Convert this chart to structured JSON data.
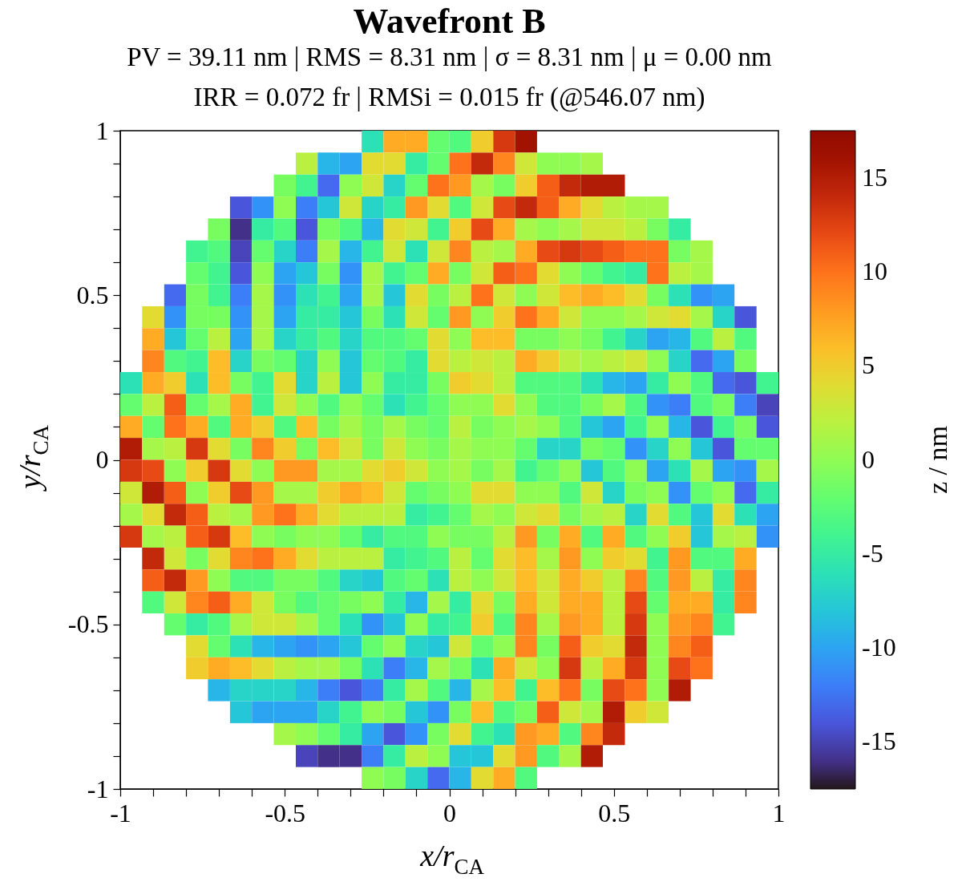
{
  "chart_data": {
    "type": "heatmap",
    "title": "Wavefront B",
    "subtitle": "PV = 39.11 nm | RMS = 8.31 nm | σ = 8.31 nm | μ = 0.00 nm\nIRR = 0.072 fr | RMSi = 0.015 fr (@546.07 nm)",
    "xlabel": "x/r$_{CA}$",
    "ylabel": "y/r$_{CA}$",
    "clabel": "z / nm",
    "x": [
      -0.967,
      -0.9,
      -0.833,
      -0.767,
      -0.7,
      -0.633,
      -0.567,
      -0.5,
      -0.433,
      -0.367,
      -0.3,
      -0.233,
      -0.167,
      -0.1,
      -0.033,
      0.033,
      0.1,
      0.167,
      0.233,
      0.3,
      0.367,
      0.433,
      0.5,
      0.567,
      0.633,
      0.7,
      0.767,
      0.833,
      0.9,
      0.967
    ],
    "cells": [
      [
        null,
        null,
        null,
        null,
        null,
        null,
        null,
        null,
        null,
        null,
        null,
        -6,
        7,
        7,
        -2,
        -3,
        5,
        13,
        16,
        null,
        null,
        null,
        null,
        null,
        null,
        null,
        null,
        null,
        null,
        null
      ],
      [
        null,
        null,
        null,
        null,
        null,
        null,
        null,
        null,
        2,
        -9,
        -10,
        4,
        4,
        -5,
        -2,
        10,
        14,
        9,
        3,
        0,
        0,
        1,
        null,
        null,
        null,
        null,
        null,
        null,
        null,
        null
      ],
      [
        null,
        null,
        null,
        null,
        null,
        null,
        null,
        -1,
        -4,
        -13,
        0,
        3,
        -7,
        -2,
        10,
        8,
        1,
        -1,
        5,
        11,
        14,
        15,
        15,
        null,
        null,
        null,
        null,
        null,
        null,
        null
      ],
      [
        null,
        null,
        null,
        null,
        null,
        -14,
        -11,
        0,
        -12,
        -8,
        3,
        -7,
        -5,
        8,
        4,
        -3,
        3,
        12,
        14,
        11,
        7,
        4,
        2,
        1,
        1,
        null,
        null,
        null,
        null,
        null
      ],
      [
        null,
        null,
        null,
        null,
        -1,
        -16,
        -5,
        -3,
        -14,
        -1,
        -3,
        -9,
        4,
        3,
        -4,
        5,
        12,
        7,
        1,
        0,
        1,
        3,
        3,
        2,
        -1,
        -5,
        null,
        null,
        null,
        null
      ],
      [
        null,
        null,
        null,
        -4,
        -3,
        -15,
        -2,
        -7,
        -12,
        1,
        -9,
        -4,
        3,
        -6,
        3,
        9,
        2,
        1,
        7,
        12,
        13,
        12,
        11,
        10,
        10,
        -1,
        1,
        null,
        null,
        null
      ],
      [
        null,
        null,
        null,
        -2,
        -4,
        -14,
        0,
        -10,
        -8,
        -1,
        -11,
        1,
        -4,
        -2,
        7,
        -1,
        3,
        11,
        10,
        4,
        0,
        -2,
        -4,
        -5,
        10,
        2,
        1,
        null,
        null,
        null
      ],
      [
        null,
        null,
        -13,
        -1,
        -4,
        -12,
        1,
        -11,
        -6,
        -4,
        -10,
        1,
        -8,
        4,
        -1,
        2,
        10,
        3,
        0,
        3,
        6,
        7,
        6,
        4,
        -1,
        -6,
        -11,
        -10,
        null,
        null
      ],
      [
        null,
        4,
        -11,
        -1,
        -1,
        -11,
        1,
        -10,
        -5,
        -5,
        -8,
        -1,
        -6,
        3,
        -2,
        8,
        0,
        5,
        10,
        7,
        3,
        0,
        0,
        1,
        3,
        4,
        1,
        -7,
        -14,
        null
      ],
      [
        null,
        7,
        -8,
        -2,
        2,
        -10,
        1,
        -7,
        -5,
        -3,
        -7,
        -3,
        -3,
        -2,
        4,
        0,
        6,
        6,
        -1,
        -1,
        0,
        -1,
        -4,
        -7,
        -10,
        -9,
        -3,
        2,
        -3,
        null
      ],
      [
        null,
        9,
        -3,
        -4,
        6,
        -7,
        -1,
        -2,
        -7,
        0,
        -8,
        -2,
        -3,
        -5,
        4,
        2,
        3,
        2,
        7,
        5,
        2,
        1,
        2,
        3,
        0,
        -7,
        -13,
        -10,
        -1,
        null
      ],
      [
        -6,
        7,
        5,
        -6,
        6,
        -1,
        -4,
        4,
        -7,
        2,
        -8,
        0,
        -5,
        -5,
        -1,
        5,
        4,
        2,
        -3,
        -3,
        -3,
        -6,
        -9,
        -10,
        -5,
        0,
        -3,
        -13,
        -14,
        -4
      ],
      [
        -2,
        2,
        11,
        -2,
        1,
        7,
        -4,
        3,
        0,
        -3,
        0,
        -2,
        -6,
        -4,
        -2,
        0,
        0,
        4,
        0,
        -3,
        -3,
        -1,
        1,
        -3,
        -11,
        -12,
        -3,
        -1,
        -12,
        -15
      ],
      [
        7,
        -2,
        10,
        7,
        -3,
        7,
        5,
        -3,
        6,
        -1,
        1,
        -1,
        1,
        -1,
        -2,
        2,
        -1,
        0,
        1,
        0,
        -3,
        -8,
        -10,
        -4,
        0,
        -9,
        -14,
        -4,
        -1,
        -14
      ],
      [
        15,
        1,
        2,
        13,
        4,
        -1,
        9,
        5,
        -1,
        6,
        3,
        -1,
        3,
        0,
        -1,
        1,
        0,
        0,
        -2,
        -7,
        -7,
        -1,
        -2,
        -11,
        -7,
        0,
        -8,
        -14,
        -2,
        -2
      ],
      [
        13,
        12,
        0,
        5,
        13,
        4,
        0,
        8,
        8,
        1,
        1,
        4,
        5,
        3,
        0,
        1,
        -1,
        1,
        -4,
        -2,
        0,
        -8,
        -3,
        0,
        -10,
        -6,
        1,
        -10,
        -11,
        1
      ],
      [
        3,
        15,
        11,
        0,
        5,
        12,
        8,
        1,
        1,
        5,
        7,
        6,
        3,
        -2,
        -1,
        0,
        4,
        4,
        0,
        0,
        -3,
        3,
        -7,
        -1,
        0,
        -11,
        -2,
        0,
        -13,
        -5
      ],
      [
        1,
        4,
        14,
        11,
        2,
        1,
        8,
        10,
        7,
        4,
        2,
        2,
        2,
        -5,
        -4,
        -2,
        1,
        0,
        3,
        4,
        -1,
        1,
        2,
        -7,
        4,
        -3,
        -8,
        4,
        -6,
        -10
      ],
      [
        13,
        1,
        2,
        11,
        13,
        6,
        0,
        -1,
        0,
        0,
        -2,
        -5,
        -3,
        -3,
        0,
        -1,
        -1,
        2,
        8,
        -1,
        7,
        -3,
        7,
        -3,
        0,
        5,
        -8,
        1,
        2,
        -11
      ],
      [
        null,
        14,
        3,
        -1,
        4,
        9,
        10,
        7,
        4,
        2,
        2,
        2,
        -5,
        -4,
        -3,
        2,
        -2,
        4,
        6,
        1,
        8,
        0,
        5,
        4,
        -4,
        8,
        -3,
        -3,
        7,
        null
      ],
      [
        null,
        11,
        14,
        8,
        0,
        -3,
        -3,
        -1,
        -1,
        -3,
        -7,
        -8,
        -3,
        -2,
        -6,
        2,
        0,
        3,
        6,
        3,
        7,
        5,
        2,
        9,
        -3,
        8,
        2,
        -5,
        9,
        null
      ],
      [
        null,
        -3,
        3,
        9,
        11,
        7,
        3,
        -1,
        -3,
        -2,
        -1,
        0,
        -5,
        -9,
        1,
        -5,
        4,
        -1,
        7,
        3,
        7,
        7,
        2,
        12,
        -2,
        7,
        7,
        -5,
        9,
        null
      ],
      [
        null,
        null,
        -2,
        -5,
        -3,
        1,
        3,
        3,
        1,
        -2,
        -6,
        -11,
        -8,
        0,
        -5,
        -4,
        5,
        -3,
        9,
        1,
        8,
        7,
        2,
        13,
        0,
        8,
        9,
        -4,
        null,
        null
      ],
      [
        null,
        null,
        null,
        4,
        -2,
        -6,
        -9,
        -10,
        -11,
        -10,
        -8,
        -2,
        0,
        -7,
        -8,
        3,
        -2,
        0,
        9,
        -1,
        11,
        5,
        4,
        14,
        0,
        9,
        11,
        null,
        null,
        null
      ],
      [
        null,
        null,
        null,
        5,
        7,
        6,
        4,
        2,
        1,
        1,
        -1,
        -6,
        -12,
        -9,
        1,
        -1,
        -6,
        7,
        3,
        0,
        13,
        2,
        7,
        13,
        0,
        12,
        10,
        null,
        null,
        null
      ],
      [
        null,
        null,
        null,
        null,
        -9,
        -7,
        -7,
        -7,
        -9,
        -12,
        -14,
        -12,
        -5,
        1,
        -3,
        -9,
        1,
        6,
        -4,
        6,
        10,
        -1,
        12,
        10,
        0,
        15,
        null,
        null,
        null,
        null
      ],
      [
        null,
        null,
        null,
        null,
        null,
        -8,
        -10,
        -10,
        -10,
        -7,
        -4,
        0,
        -1,
        -8,
        -11,
        -1,
        6,
        -3,
        -1,
        11,
        3,
        1,
        15,
        5,
        3,
        null,
        null,
        null,
        null,
        null
      ],
      [
        null,
        null,
        null,
        null,
        null,
        null,
        null,
        1,
        0,
        -2,
        -5,
        -10,
        -14,
        -11,
        -1,
        4,
        -4,
        -6,
        8,
        7,
        -3,
        9,
        14,
        null,
        null,
        null,
        null,
        null,
        null,
        null
      ],
      [
        null,
        null,
        null,
        null,
        null,
        null,
        null,
        null,
        -15,
        -16,
        -16,
        -12,
        -5,
        2,
        0,
        -8,
        -8,
        4,
        8,
        -3,
        1,
        15,
        null,
        null,
        null,
        null,
        null,
        null,
        null,
        null
      ],
      [
        null,
        null,
        null,
        null,
        null,
        null,
        null,
        null,
        null,
        null,
        null,
        0,
        -1,
        -7,
        -13,
        -9,
        4,
        7,
        -3,
        null,
        null,
        null,
        null,
        null,
        null,
        null,
        null,
        null,
        null,
        null
      ]
    ],
    "clim": [
      -17.5,
      17.5
    ],
    "cticks": [
      -15,
      -10,
      -5,
      0,
      5,
      10,
      15
    ],
    "xlim": [
      -1,
      1
    ],
    "ylim": [
      -1,
      1
    ],
    "xticks": [
      -1,
      {
        "value": -0.9,
        "label": null
      },
      {
        "value": -0.8,
        "label": null
      },
      {
        "value": -0.7,
        "label": null
      },
      {
        "value": -0.6,
        "label": null
      },
      -0.5,
      {
        "value": -0.4,
        "label": null
      },
      {
        "value": -0.3,
        "label": null
      },
      {
        "value": -0.2,
        "label": null
      },
      {
        "value": -0.1,
        "label": null
      },
      0,
      {
        "value": 0.1,
        "label": null
      },
      {
        "value": 0.2,
        "label": null
      },
      {
        "value": 0.3,
        "label": null
      },
      {
        "value": 0.4,
        "label": null
      },
      0.5,
      {
        "value": 0.6,
        "label": null
      },
      {
        "value": 0.7,
        "label": null
      },
      {
        "value": 0.8,
        "label": null
      },
      {
        "value": 0.9,
        "label": null
      },
      1
    ],
    "yticks": [
      -1,
      {
        "value": -0.9,
        "label": null
      },
      {
        "value": -0.8,
        "label": null
      },
      {
        "value": -0.7,
        "label": null
      },
      {
        "value": -0.6,
        "label": null
      },
      -0.5,
      {
        "value": -0.4,
        "label": null
      },
      {
        "value": -0.3,
        "label": null
      },
      {
        "value": -0.2,
        "label": null
      },
      {
        "value": -0.1,
        "label": null
      },
      0,
      {
        "value": 0.1,
        "label": null
      },
      {
        "value": 0.2,
        "label": null
      },
      {
        "value": 0.3,
        "label": null
      },
      {
        "value": 0.4,
        "label": null
      },
      0.5,
      {
        "value": 0.6,
        "label": null
      },
      {
        "value": 0.7,
        "label": null
      },
      {
        "value": 0.8,
        "label": null
      },
      {
        "value": 0.9,
        "label": null
      },
      1
    ]
  }
}
